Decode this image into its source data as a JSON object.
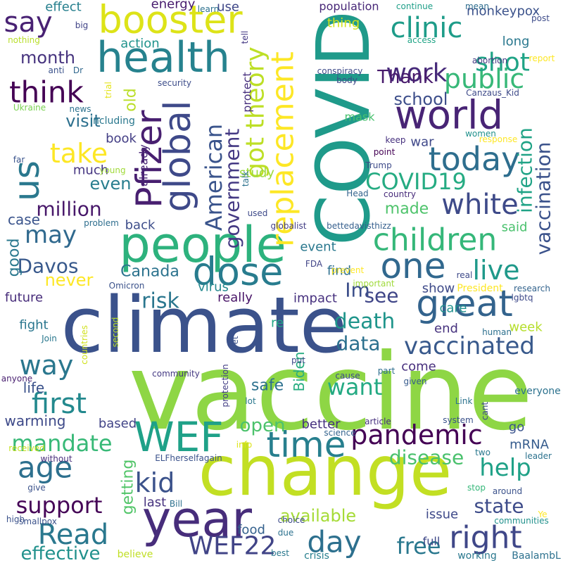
{
  "words": [
    {
      "text": "vaccine",
      "color": "#8ed645"
    },
    {
      "text": "climate",
      "color": "#3b528b"
    },
    {
      "text": "change",
      "color": "#c2df23"
    },
    {
      "text": "COVID",
      "color": "#1f9a8a"
    },
    {
      "text": "people",
      "color": "#2db27d"
    },
    {
      "text": "year",
      "color": "#472d7b"
    },
    {
      "text": "health",
      "color": "#26828e"
    },
    {
      "text": "booster",
      "color": "#dde318"
    },
    {
      "text": "world",
      "color": "#482475"
    },
    {
      "text": "great",
      "color": "#33638d"
    },
    {
      "text": "global",
      "color": "#3e4989"
    },
    {
      "text": "Pfizer",
      "color": "#481f70"
    },
    {
      "text": "replacement",
      "color": "#fde725"
    },
    {
      "text": "WEF",
      "color": "#1fa188"
    },
    {
      "text": "dose",
      "color": "#287c8e"
    },
    {
      "text": "us",
      "color": "#2a788e"
    },
    {
      "text": "time",
      "color": "#277f8e"
    },
    {
      "text": "one",
      "color": "#31688e"
    },
    {
      "text": "children",
      "color": "#35b779"
    },
    {
      "text": "today",
      "color": "#2e6e8e"
    },
    {
      "text": "say",
      "color": "#482173"
    },
    {
      "text": "work",
      "color": "#472a7a"
    },
    {
      "text": "clinic",
      "color": "#1e9c89"
    },
    {
      "text": "public",
      "color": "#37b878"
    },
    {
      "text": "take",
      "color": "#fde725"
    },
    {
      "text": "think",
      "color": "#440154"
    },
    {
      "text": "got theory",
      "color": "#bddf26"
    },
    {
      "text": "American",
      "color": "#3a548c"
    },
    {
      "text": "government",
      "color": "#443983"
    },
    {
      "text": "white",
      "color": "#3e4a89"
    },
    {
      "text": "vaccination",
      "color": "#3b528b"
    },
    {
      "text": "infection",
      "color": "#20a386"
    },
    {
      "text": "COVID19",
      "color": "#25ab82"
    },
    {
      "text": "shot",
      "color": "#20a486"
    },
    {
      "text": "pandemic",
      "color": "#440154"
    },
    {
      "text": "vaccinated",
      "color": "#38598c"
    },
    {
      "text": "right",
      "color": "#3f4788"
    },
    {
      "text": "day",
      "color": "#2d708e"
    },
    {
      "text": "WEF22",
      "color": "#414487"
    },
    {
      "text": "Read",
      "color": "#2a788e"
    },
    {
      "text": "age",
      "color": "#2d708e"
    },
    {
      "text": "first",
      "color": "#23898e"
    },
    {
      "text": "mandate",
      "color": "#38b977"
    },
    {
      "text": "kid",
      "color": "#3b528b"
    },
    {
      "text": "support",
      "color": "#450457"
    },
    {
      "text": "risk",
      "color": "#2a768e"
    },
    {
      "text": "may",
      "color": "#30698e"
    },
    {
      "text": "Davos",
      "color": "#38598c"
    },
    {
      "text": "million",
      "color": "#48186a"
    },
    {
      "text": "month",
      "color": "#46337e"
    },
    {
      "text": "live",
      "color": "#1f998a"
    },
    {
      "text": "see",
      "color": "#404688"
    },
    {
      "text": "Im",
      "color": "#3c4f8a"
    },
    {
      "text": "death",
      "color": "#1f958b"
    },
    {
      "text": "data",
      "color": "#2c718e"
    },
    {
      "text": "want",
      "color": "#24aa83"
    },
    {
      "text": "way",
      "color": "#2a778e"
    },
    {
      "text": "help",
      "color": "#1fa187"
    },
    {
      "text": "state",
      "color": "#3e4c8a"
    },
    {
      "text": "free",
      "color": "#2a788e"
    },
    {
      "text": "disease",
      "color": "#4ac16d"
    },
    {
      "text": "available",
      "color": "#a5db36"
    },
    {
      "text": "open",
      "color": "#4cc26c"
    },
    {
      "text": "effective",
      "color": "#21918c"
    },
    {
      "text": "Thank",
      "color": "#481a6c"
    },
    {
      "text": "school",
      "color": "#3d4e8a"
    },
    {
      "text": "made",
      "color": "#4ec36b"
    },
    {
      "text": "even",
      "color": "#287d8e"
    },
    {
      "text": "visit",
      "color": "#2d708e"
    },
    {
      "text": "never",
      "color": "#fde725"
    },
    {
      "text": "good",
      "color": "#2a788e"
    },
    {
      "text": "Canada",
      "color": "#2c738e"
    },
    {
      "text": "old",
      "color": "#bade28"
    },
    {
      "text": "getting",
      "color": "#52c569"
    },
    {
      "text": "Biden",
      "color": "#27ad81"
    },
    {
      "text": "safe",
      "color": "#2d718e"
    },
    {
      "text": "life",
      "color": "#3b528b"
    },
    {
      "text": "warming",
      "color": "#3e4a89"
    },
    {
      "text": "case",
      "color": "#3a548c"
    },
    {
      "text": "future",
      "color": "#472c7a"
    },
    {
      "text": "fight",
      "color": "#2a768e"
    },
    {
      "text": "effect",
      "color": "#27808e"
    },
    {
      "text": "energy",
      "color": "#481c6e"
    },
    {
      "text": "use",
      "color": "#3f4788"
    },
    {
      "text": "population",
      "color": "#482878"
    },
    {
      "text": "monkeypox",
      "color": "#3b528b"
    },
    {
      "text": "long",
      "color": "#2a788e"
    },
    {
      "text": "action",
      "color": "#20938c"
    },
    {
      "text": "thing",
      "color": "#d2e21b"
    },
    {
      "text": "book",
      "color": "#433e85"
    },
    {
      "text": "much",
      "color": "#453581"
    },
    {
      "text": "back",
      "color": "#3d4d8a"
    },
    {
      "text": "virus",
      "color": "#23898e"
    },
    {
      "text": "impact",
      "color": "#46307e"
    },
    {
      "text": "really",
      "color": "#481467"
    },
    {
      "text": "show",
      "color": "#3e4a89"
    },
    {
      "text": "care",
      "color": "#21908d"
    },
    {
      "text": "week",
      "color": "#b5de2b"
    },
    {
      "text": "end",
      "color": "#46327e"
    },
    {
      "text": "come",
      "color": "#472f7d"
    },
    {
      "text": "better",
      "color": "#46307e"
    },
    {
      "text": "mRNA",
      "color": "#365c8d"
    },
    {
      "text": "go",
      "color": "#3a548c"
    },
    {
      "text": "based",
      "color": "#414487"
    },
    {
      "text": "food",
      "color": "#34618d"
    },
    {
      "text": "issue",
      "color": "#3e4989"
    },
    {
      "text": "last",
      "color": "#46327e"
    },
    {
      "text": "event",
      "color": "#2a788e"
    },
    {
      "text": "find",
      "color": "#2e6f8e"
    },
    {
      "text": "said",
      "color": "#4ac16d"
    },
    {
      "text": "study",
      "color": "#9bd93c"
    },
    {
      "text": "war",
      "color": "#3f4889"
    },
    {
      "text": "protect",
      "color": "#472f7d"
    },
    {
      "text": "mask",
      "color": "#48c16e"
    },
    {
      "text": "already",
      "color": "#482576"
    },
    {
      "text": "including",
      "color": "#2a788e"
    },
    {
      "text": "re",
      "color": "#22a785"
    },
    {
      "text": "full",
      "color": "#3f4889"
    },
    {
      "text": "believe",
      "color": "#c0df25"
    },
    {
      "text": "crisis",
      "color": "#277f8e"
    },
    {
      "text": "working",
      "color": "#2a788e"
    },
    {
      "text": "BaalambL",
      "color": "#2d718e"
    },
    {
      "text": "communities",
      "color": "#21918c"
    },
    {
      "text": "everyone",
      "color": "#2c728e"
    },
    {
      "text": "given",
      "color": "#375b8d"
    },
    {
      "text": "research",
      "color": "#33638d"
    },
    {
      "text": "real",
      "color": "#3e4a89"
    },
    {
      "text": "President",
      "color": "#fde725"
    },
    {
      "text": "lgbtq",
      "color": "#3e4989"
    },
    {
      "text": "human",
      "color": "#2d708e"
    },
    {
      "text": "Omicron",
      "color": "#3b528b"
    },
    {
      "text": "FDA",
      "color": "#414487"
    },
    {
      "text": "important",
      "color": "#9fda3a"
    },
    {
      "text": "prevent",
      "color": "#fde725"
    },
    {
      "text": "Head",
      "color": "#33638d"
    },
    {
      "text": "globalist",
      "color": "#433e85"
    },
    {
      "text": "bettedavisthizz",
      "color": "#355f8d"
    },
    {
      "text": "country",
      "color": "#472a7a"
    },
    {
      "text": "used",
      "color": "#3e4a89"
    },
    {
      "text": "problem",
      "color": "#2e6e8e"
    },
    {
      "text": "Canzaus_Kid",
      "color": "#3e4a89"
    },
    {
      "text": "conspiracy",
      "color": "#3e4a89"
    },
    {
      "text": "body",
      "color": "#3f4889"
    },
    {
      "text": "abortion",
      "color": "#443983"
    },
    {
      "text": "report",
      "color": "#fde725"
    },
    {
      "text": "access",
      "color": "#20a486"
    },
    {
      "text": "security",
      "color": "#3d4d8a"
    },
    {
      "text": "news",
      "color": "#2c728e"
    },
    {
      "text": "Ukraine",
      "color": "#7ad151"
    },
    {
      "text": "far",
      "color": "#3a548c"
    },
    {
      "text": "young",
      "color": "#a0da39"
    },
    {
      "text": "talk",
      "color": "#2c728e"
    },
    {
      "text": "Trump",
      "color": "#3e4a89"
    },
    {
      "text": "point",
      "color": "#440154"
    },
    {
      "text": "keep",
      "color": "#46307e"
    },
    {
      "text": "response",
      "color": "#fde725"
    },
    {
      "text": "women",
      "color": "#21918c"
    },
    {
      "text": "continue",
      "color": "#1f9f88"
    },
    {
      "text": "mean",
      "color": "#2e6d8e"
    },
    {
      "text": "post",
      "color": "#3e4c8a"
    },
    {
      "text": "tell",
      "color": "#443983"
    },
    {
      "text": "learn",
      "color": "#2d718e"
    },
    {
      "text": "nothing",
      "color": "#b8de29"
    },
    {
      "text": "big",
      "color": "#414487"
    },
    {
      "text": "anti",
      "color": "#3b528b"
    },
    {
      "text": "Dr",
      "color": "#31688e"
    },
    {
      "text": "trial",
      "color": "#e5e419"
    },
    {
      "text": "countries",
      "color": "#d0e11c"
    },
    {
      "text": "second",
      "color": "#bade28"
    },
    {
      "text": "Join",
      "color": "#2a788e"
    },
    {
      "text": "anyone",
      "color": "#481f70"
    },
    {
      "text": "community",
      "color": "#443983"
    },
    {
      "text": "protection",
      "color": "#433e85"
    },
    {
      "text": "yet",
      "color": "#3b528b"
    },
    {
      "text": "cause",
      "color": "#3e4c8a"
    },
    {
      "text": "part",
      "color": "#2e6e8e"
    },
    {
      "text": "Link",
      "color": "#2c738e"
    },
    {
      "text": "cant",
      "color": "#3e4a89"
    },
    {
      "text": "system",
      "color": "#3b528b"
    },
    {
      "text": "article",
      "color": "#46307e"
    },
    {
      "text": "science",
      "color": "#33638d"
    },
    {
      "text": "two",
      "color": "#2a788e"
    },
    {
      "text": "leader",
      "color": "#2c728e"
    },
    {
      "text": "ELFherselfagain",
      "color": "#3b528b"
    },
    {
      "text": "info",
      "color": "#dde318"
    },
    {
      "text": "received",
      "color": "#c5e021"
    },
    {
      "text": "without",
      "color": "#472d7b"
    },
    {
      "text": "give",
      "color": "#3b528b"
    },
    {
      "text": "high",
      "color": "#3b528b"
    },
    {
      "text": "smallpox",
      "color": "#3b528b"
    },
    {
      "text": "Bill",
      "color": "#2d718e"
    },
    {
      "text": "lot",
      "color": "#2a788e"
    },
    {
      "text": "put",
      "color": "#3e4a89"
    },
    {
      "text": "due",
      "color": "#2c718e"
    },
    {
      "text": "choice",
      "color": "#3e4c8a"
    },
    {
      "text": "best",
      "color": "#2a788e"
    },
    {
      "text": "stop",
      "color": "#35b779"
    },
    {
      "text": "around",
      "color": "#3b528b"
    },
    {
      "text": "Ye",
      "color": "#fde725"
    }
  ]
}
